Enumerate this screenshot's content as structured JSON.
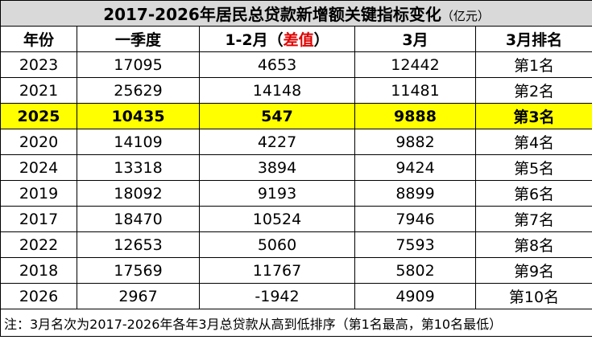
{
  "title": "2017-2026年居民总贷款新增额关键指标变化",
  "unit": "（亿元）",
  "headers": [
    "年份",
    "一季度",
    [
      "1-2月（",
      "差值",
      "）"
    ],
    "3月",
    "3月排名"
  ],
  "rows": [
    [
      2023,
      17095,
      4653,
      12442,
      "第1名"
    ],
    [
      2021,
      25629,
      14148,
      11481,
      "第2名"
    ],
    [
      2025,
      10435,
      547,
      9888,
      "第3名"
    ],
    [
      2020,
      14109,
      4227,
      9882,
      "第4名"
    ],
    [
      2024,
      13318,
      3894,
      9424,
      "第5名"
    ],
    [
      2019,
      18092,
      9193,
      8899,
      "第6名"
    ],
    [
      2017,
      18470,
      10524,
      7946,
      "第7名"
    ],
    [
      2022,
      12653,
      5060,
      7593,
      "第8名"
    ],
    [
      2018,
      17569,
      11767,
      5802,
      "第9名"
    ],
    [
      2026,
      2967,
      -1942,
      4909,
      "第10名"
    ]
  ],
  "highlight_year": 2025,
  "note": "注：3月名次为2017-2026年各年3月总贷款从高到低排序（第1名最高，第10名最低）"
}
